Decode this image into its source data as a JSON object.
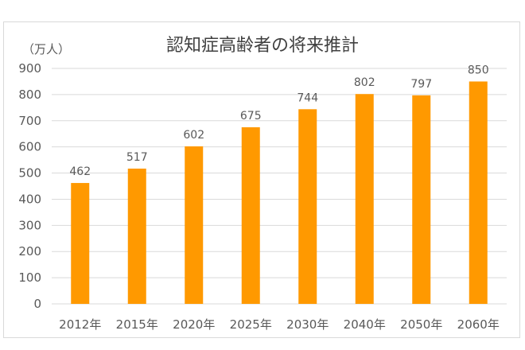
{
  "chart_data": {
    "type": "bar",
    "title": "認知症高齢者の将来推計",
    "ylabel": "（万人）",
    "xlabel": "",
    "categories": [
      "2012年",
      "2015年",
      "2020年",
      "2025年",
      "2030年",
      "2040年",
      "2050年",
      "2060年"
    ],
    "values": [
      462,
      517,
      602,
      675,
      744,
      802,
      797,
      850
    ],
    "ylim": [
      0,
      900
    ],
    "yticks": [
      "0",
      "100",
      "200",
      "300",
      "400",
      "500",
      "600",
      "700",
      "800",
      "900"
    ],
    "grid": true,
    "legend": "none",
    "bar_color": "#ff9900"
  }
}
